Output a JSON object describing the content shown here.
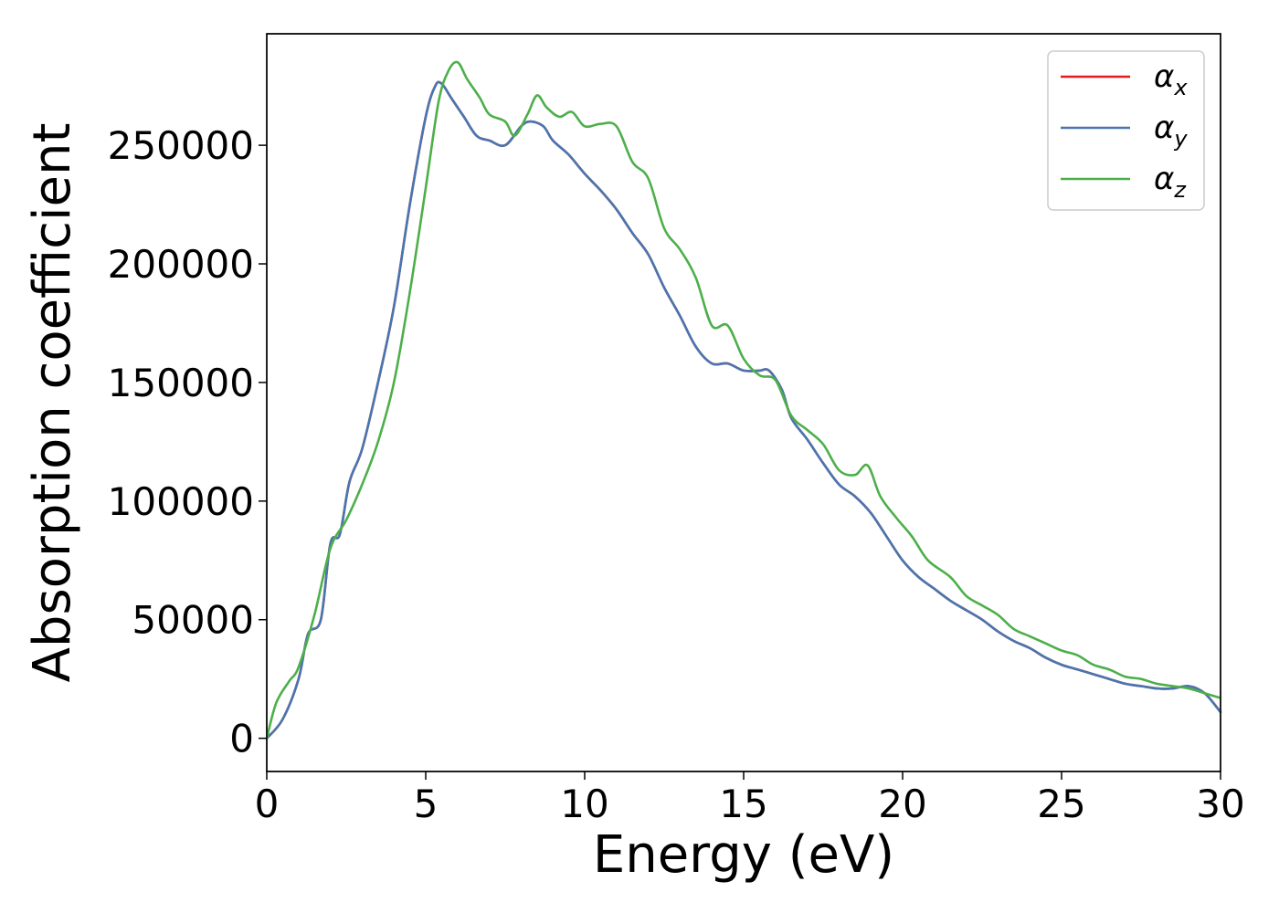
{
  "chart_data": {
    "type": "line",
    "xlabel": "Energy (eV)",
    "ylabel": "Absorption coefficient",
    "xlim": [
      0,
      30
    ],
    "ylim": [
      -14000,
      297000
    ],
    "xticks": [
      0,
      5,
      10,
      15,
      20,
      25,
      30
    ],
    "xtick_labels": [
      "0",
      "5",
      "10",
      "15",
      "20",
      "25",
      "30"
    ],
    "yticks": [
      0,
      50000,
      100000,
      150000,
      200000,
      250000
    ],
    "ytick_labels": [
      "0",
      "50000",
      "100000",
      "150000",
      "200000",
      "250000"
    ],
    "grid": false,
    "legend_position": "top-right",
    "series": [
      {
        "name": "α",
        "subscript": "x",
        "color": "#e41a1c",
        "x": [
          0,
          0.5,
          1.0,
          1.3,
          1.7,
          2.0,
          2.3,
          2.6,
          3.0,
          3.5,
          4.0,
          4.5,
          5.0,
          5.3,
          5.5,
          5.8,
          6.2,
          6.6,
          7.0,
          7.5,
          8.0,
          8.3,
          8.7,
          9.0,
          9.5,
          10.0,
          10.5,
          11.0,
          11.5,
          12.0,
          12.5,
          13.0,
          13.5,
          14.0,
          14.5,
          15.0,
          15.5,
          15.8,
          16.2,
          16.5,
          17.0,
          17.5,
          18.0,
          18.5,
          19.0,
          19.5,
          20.0,
          20.5,
          21.0,
          21.5,
          22.0,
          22.5,
          23.0,
          23.5,
          24.0,
          24.5,
          25.0,
          25.5,
          26.0,
          26.5,
          27.0,
          27.5,
          28.0,
          28.5,
          29.0,
          29.5,
          30.0
        ],
        "y": [
          0,
          8000,
          25000,
          44000,
          50000,
          82000,
          86000,
          108000,
          122000,
          150000,
          182000,
          225000,
          262000,
          275000,
          276000,
          270000,
          262000,
          254000,
          252000,
          250000,
          258000,
          260000,
          258000,
          252000,
          246000,
          238000,
          231000,
          223000,
          213000,
          204000,
          190000,
          178000,
          165000,
          158000,
          158000,
          155000,
          155000,
          155000,
          147000,
          135000,
          126000,
          116000,
          107000,
          102000,
          95000,
          85000,
          75000,
          68000,
          63000,
          58000,
          54000,
          50000,
          45000,
          41000,
          38000,
          34000,
          31000,
          29000,
          27000,
          25000,
          23000,
          22000,
          21000,
          21000,
          22000,
          19000,
          11000
        ]
      },
      {
        "name": "α",
        "subscript": "y",
        "color": "#4876b0",
        "x": [
          0,
          0.5,
          1.0,
          1.3,
          1.7,
          2.0,
          2.3,
          2.6,
          3.0,
          3.5,
          4.0,
          4.5,
          5.0,
          5.3,
          5.5,
          5.8,
          6.2,
          6.6,
          7.0,
          7.5,
          8.0,
          8.3,
          8.7,
          9.0,
          9.5,
          10.0,
          10.5,
          11.0,
          11.5,
          12.0,
          12.5,
          13.0,
          13.5,
          14.0,
          14.5,
          15.0,
          15.5,
          15.8,
          16.2,
          16.5,
          17.0,
          17.5,
          18.0,
          18.5,
          19.0,
          19.5,
          20.0,
          20.5,
          21.0,
          21.5,
          22.0,
          22.5,
          23.0,
          23.5,
          24.0,
          24.5,
          25.0,
          25.5,
          26.0,
          26.5,
          27.0,
          27.5,
          28.0,
          28.5,
          29.0,
          29.5,
          30.0
        ],
        "y": [
          0,
          8000,
          25000,
          44000,
          50000,
          82000,
          86000,
          108000,
          122000,
          150000,
          182000,
          225000,
          262000,
          275000,
          276000,
          270000,
          262000,
          254000,
          252000,
          250000,
          258000,
          260000,
          258000,
          252000,
          246000,
          238000,
          231000,
          223000,
          213000,
          204000,
          190000,
          178000,
          165000,
          158000,
          158000,
          155000,
          155000,
          155000,
          147000,
          135000,
          126000,
          116000,
          107000,
          102000,
          95000,
          85000,
          75000,
          68000,
          63000,
          58000,
          54000,
          50000,
          45000,
          41000,
          38000,
          34000,
          31000,
          29000,
          27000,
          25000,
          23000,
          22000,
          21000,
          21000,
          22000,
          19000,
          11000
        ]
      },
      {
        "name": "α",
        "subscript": "z",
        "color": "#4daf4a",
        "x": [
          0,
          0.3,
          0.7,
          1.0,
          1.5,
          2.0,
          2.5,
          3.0,
          3.5,
          4.0,
          4.5,
          5.0,
          5.4,
          5.7,
          6.0,
          6.3,
          6.7,
          7.0,
          7.5,
          7.8,
          8.2,
          8.5,
          8.8,
          9.2,
          9.6,
          10.0,
          10.5,
          11.0,
          11.5,
          12.0,
          12.5,
          13.0,
          13.5,
          14.0,
          14.5,
          15.0,
          15.5,
          16.0,
          16.5,
          17.0,
          17.5,
          18.0,
          18.5,
          18.9,
          19.3,
          19.8,
          20.3,
          20.8,
          21.5,
          22.0,
          22.5,
          23.0,
          23.5,
          24.0,
          24.5,
          25.0,
          25.5,
          26.0,
          26.5,
          27.0,
          27.5,
          28.0,
          28.5,
          29.0,
          29.5,
          30.0
        ],
        "y": [
          0,
          15000,
          24000,
          30000,
          52000,
          80000,
          92000,
          107000,
          125000,
          150000,
          188000,
          232000,
          268000,
          281000,
          285000,
          278000,
          270000,
          263000,
          260000,
          254000,
          263000,
          271000,
          266000,
          262000,
          264000,
          258000,
          259000,
          258000,
          243000,
          236000,
          215000,
          206000,
          194000,
          174000,
          174000,
          160000,
          153000,
          151000,
          136000,
          130000,
          124000,
          113000,
          111000,
          115000,
          102000,
          93000,
          85000,
          75000,
          68000,
          60000,
          56000,
          52000,
          46000,
          43000,
          40000,
          37000,
          35000,
          31000,
          29000,
          26000,
          25000,
          23000,
          22000,
          21000,
          19000,
          17000
        ]
      }
    ]
  }
}
